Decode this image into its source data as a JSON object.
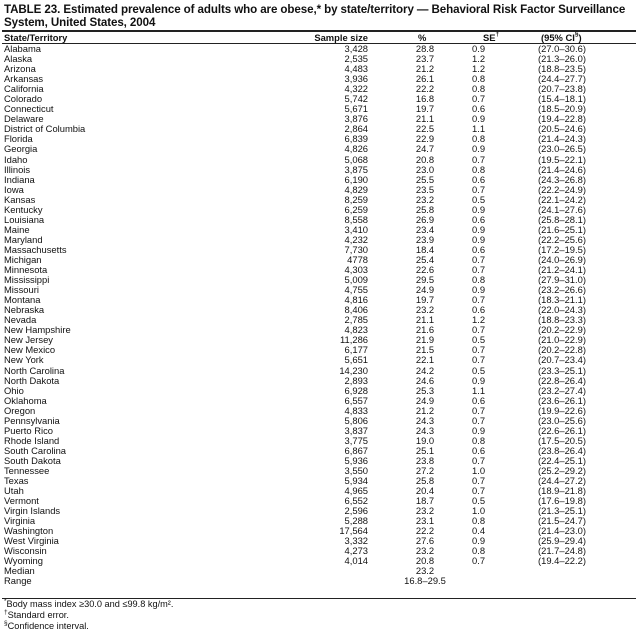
{
  "title": "TABLE 23. Estimated prevalence of adults who are obese,* by state/territory — Behavioral Risk Factor Surveillance System, United States, 2004",
  "columns": {
    "state": "State/Territory",
    "sample_size": "Sample size",
    "percent": "%",
    "se": "SE",
    "se_mark": "†",
    "ci": "(95% CI",
    "ci_mark": "§",
    "ci_close": ")"
  },
  "rows": [
    [
      "Alabama",
      "3,428",
      "28.8",
      "0.9",
      "(27.0–30.6)"
    ],
    [
      "Alaska",
      "2,535",
      "23.7",
      "1.2",
      "(21.3–26.0)"
    ],
    [
      "Arizona",
      "4,483",
      "21.2",
      "1.2",
      "(18.8–23.5)"
    ],
    [
      "Arkansas",
      "3,936",
      "26.1",
      "0.8",
      "(24.4–27.7)"
    ],
    [
      "California",
      "4,322",
      "22.2",
      "0.8",
      "(20.7–23.8)"
    ],
    [
      "Colorado",
      "5,742",
      "16.8",
      "0.7",
      "(15.4–18.1)"
    ],
    [
      "Connecticut",
      "5,671",
      "19.7",
      "0.6",
      "(18.5–20.9)"
    ],
    [
      "Delaware",
      "3,876",
      "21.1",
      "0.9",
      "(19.4–22.8)"
    ],
    [
      "District of Columbia",
      "2,864",
      "22.5",
      "1.1",
      "(20.5–24.6)"
    ],
    [
      "Florida",
      "6,839",
      "22.9",
      "0.8",
      "(21.4–24.3)"
    ],
    [
      "Georgia",
      "4,826",
      "24.7",
      "0.9",
      "(23.0–26.5)"
    ],
    [
      "Idaho",
      "5,068",
      "20.8",
      "0.7",
      "(19.5–22.1)"
    ],
    [
      "Illinois",
      "3,875",
      "23.0",
      "0.8",
      "(21.4–24.6)"
    ],
    [
      "Indiana",
      "6,190",
      "25.5",
      "0.6",
      "(24.3–26.8)"
    ],
    [
      "Iowa",
      "4,829",
      "23.5",
      "0.7",
      "(22.2–24.9)"
    ],
    [
      "Kansas",
      "8,259",
      "23.2",
      "0.5",
      "(22.1–24.2)"
    ],
    [
      "Kentucky",
      "6,259",
      "25.8",
      "0.9",
      "(24.1–27.6)"
    ],
    [
      "Louisiana",
      "8,558",
      "26.9",
      "0.6",
      "(25.8–28.1)"
    ],
    [
      "Maine",
      "3,410",
      "23.4",
      "0.9",
      "(21.6–25.1)"
    ],
    [
      "Maryland",
      "4,232",
      "23.9",
      "0.9",
      "(22.2–25.6)"
    ],
    [
      "Massachusetts",
      "7,730",
      "18.4",
      "0.6",
      "(17.2–19.5)"
    ],
    [
      "Michigan",
      "4778",
      "25.4",
      "0.7",
      "(24.0–26.9)"
    ],
    [
      "Minnesota",
      "4,303",
      "22.6",
      "0.7",
      "(21.2–24.1)"
    ],
    [
      "Mississippi",
      "5,009",
      "29.5",
      "0.8",
      "(27.9–31.0)"
    ],
    [
      "Missouri",
      "4,755",
      "24.9",
      "0.9",
      "(23.2–26.6)"
    ],
    [
      "Montana",
      "4,816",
      "19.7",
      "0.7",
      "(18.3–21.1)"
    ],
    [
      "Nebraska",
      "8,406",
      "23.2",
      "0.6",
      "(22.0–24.3)"
    ],
    [
      "Nevada",
      "2,785",
      "21.1",
      "1.2",
      "(18.8–23.3)"
    ],
    [
      "New Hampshire",
      "4,823",
      "21.6",
      "0.7",
      "(20.2–22.9)"
    ],
    [
      "New Jersey",
      "11,286",
      "21.9",
      "0.5",
      "(21.0–22.9)"
    ],
    [
      "New Mexico",
      "6,177",
      "21.5",
      "0.7",
      "(20.2–22.8)"
    ],
    [
      "New York",
      "5,651",
      "22.1",
      "0.7",
      "(20.7–23.4)"
    ],
    [
      "North Carolina",
      "14,230",
      "24.2",
      "0.5",
      "(23.3–25.1)"
    ],
    [
      "North Dakota",
      "2,893",
      "24.6",
      "0.9",
      "(22.8–26.4)"
    ],
    [
      "Ohio",
      "6,928",
      "25.3",
      "1.1",
      "(23.2–27.4)"
    ],
    [
      "Oklahoma",
      "6,557",
      "24.9",
      "0.6",
      "(23.6–26.1)"
    ],
    [
      "Oregon",
      "4,833",
      "21.2",
      "0.7",
      "(19.9–22.6)"
    ],
    [
      "Pennsylvania",
      "5,806",
      "24.3",
      "0.7",
      "(23.0–25.6)"
    ],
    [
      "Puerto Rico",
      "3,837",
      "24.3",
      "0.9",
      "(22.6–26.1)"
    ],
    [
      "Rhode Island",
      "3,775",
      "19.0",
      "0.8",
      "(17.5–20.5)"
    ],
    [
      "South Carolina",
      "6,867",
      "25.1",
      "0.6",
      "(23.8–26.4)"
    ],
    [
      "South Dakota",
      "5,936",
      "23.8",
      "0.7",
      "(22.4–25.1)"
    ],
    [
      "Tennessee",
      "3,550",
      "27.2",
      "1.0",
      "(25.2–29.2)"
    ],
    [
      "Texas",
      "5,934",
      "25.8",
      "0.7",
      "(24.4–27.2)"
    ],
    [
      "Utah",
      "4,965",
      "20.4",
      "0.7",
      "(18.9–21.8)"
    ],
    [
      "Vermont",
      "6,552",
      "18.7",
      "0.5",
      "(17.6–19.8)"
    ],
    [
      "Virgin Islands",
      "2,596",
      "23.2",
      "1.0",
      "(21.3–25.1)"
    ],
    [
      "Virginia",
      "5,288",
      "23.1",
      "0.8",
      "(21.5–24.7)"
    ],
    [
      "Washington",
      "17,564",
      "22.2",
      "0.4",
      "(21.4–23.0)"
    ],
    [
      "West Virginia",
      "3,332",
      "27.6",
      "0.9",
      "(25.9–29.4)"
    ],
    [
      "Wisconsin",
      "4,273",
      "23.2",
      "0.8",
      "(21.7–24.8)"
    ],
    [
      "Wyoming",
      "4,014",
      "20.8",
      "0.7",
      "(19.4–22.2)"
    ],
    [
      "Median",
      "",
      "23.2",
      "",
      ""
    ],
    [
      "Range",
      "",
      "16.8–29.5",
      "",
      ""
    ]
  ],
  "footnotes": {
    "obese_mark": "*",
    "obese": "Body mass index ≥30.0 and ≤99.8 kg/m².",
    "se_mark": "†",
    "se": "Standard error.",
    "ci_mark": "§",
    "ci": "Confidence interval."
  }
}
